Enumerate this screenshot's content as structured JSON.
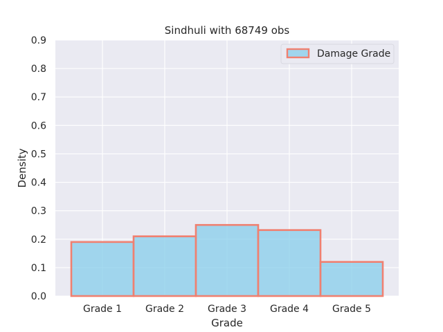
{
  "chart_data": {
    "type": "bar",
    "title": "Sindhuli with 68749 obs",
    "xlabel": "Grade",
    "ylabel": "Density",
    "categories": [
      "Grade 1",
      "Grade 2",
      "Grade 3",
      "Grade 4",
      "Grade 5"
    ],
    "series": [
      {
        "name": "Damage Grade",
        "values": [
          0.19,
          0.21,
          0.25,
          0.232,
          0.12
        ]
      }
    ],
    "ylim": [
      0,
      0.9
    ],
    "yticks": [
      "0.0",
      "0.1",
      "0.2",
      "0.3",
      "0.4",
      "0.5",
      "0.6",
      "0.7",
      "0.8",
      "0.9"
    ],
    "grid": true,
    "legend_position": "top-right",
    "colors": {
      "bar_fill": "#87ceeb",
      "bar_edge": "#f08070",
      "plot_background": "#eaeaf2",
      "grid": "#ffffff",
      "text": "#262626"
    }
  }
}
